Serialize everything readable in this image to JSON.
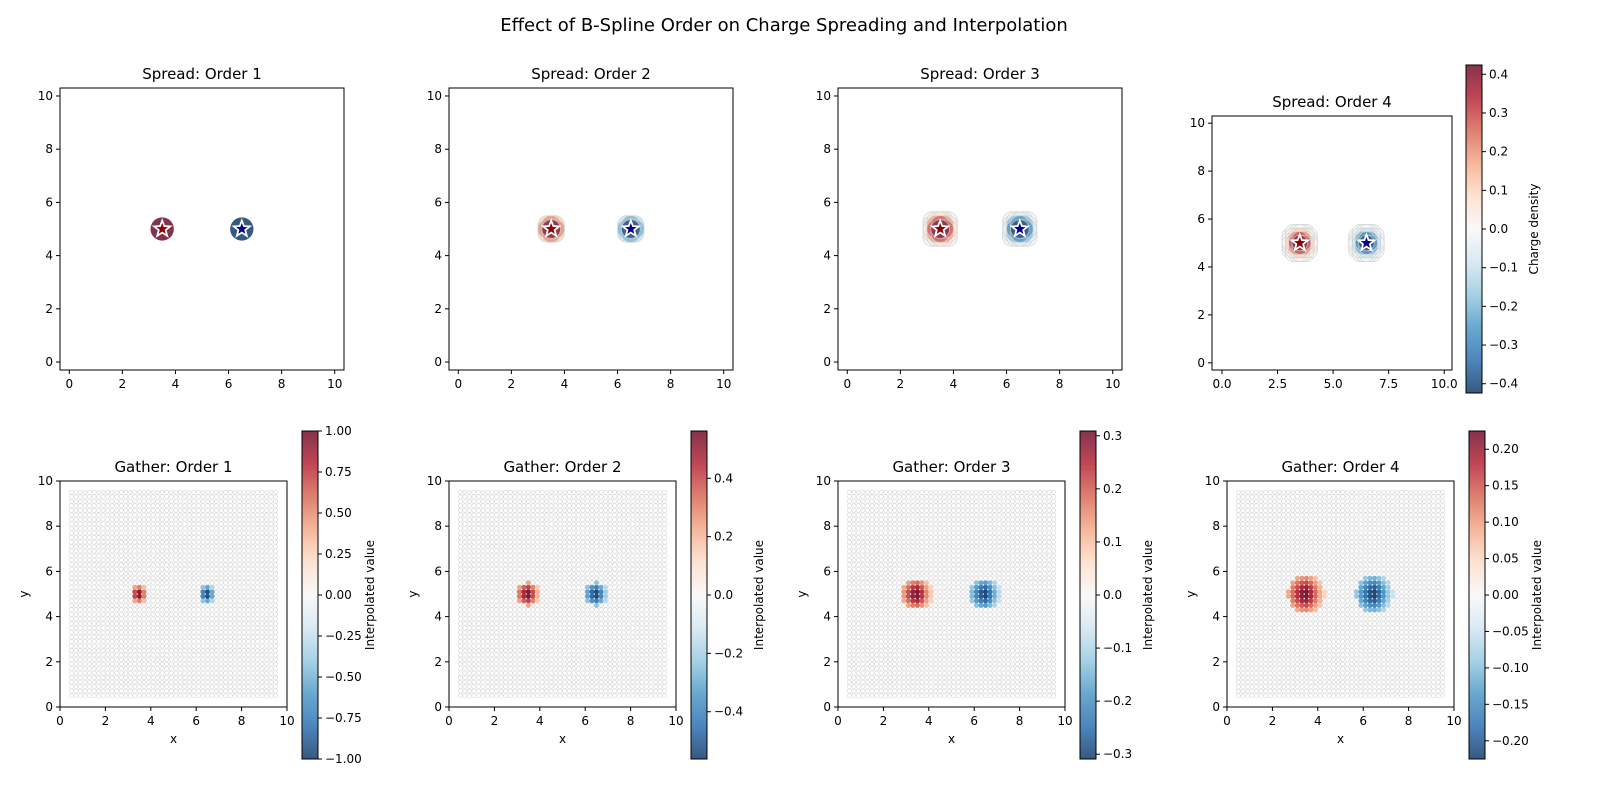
{
  "chart_data": {
    "title": "Effect of B-Spline Order on Charge Spreading and Interpolation",
    "type": "scatter",
    "colormap": "RdBu_r",
    "charges": [
      {
        "x": 3.5,
        "y": 5.0,
        "q": 1,
        "marker_color": "#8b0000"
      },
      {
        "x": 6.5,
        "y": 5.0,
        "q": -1,
        "marker_color": "#00008b"
      }
    ],
    "spread_panels": [
      {
        "title": "Spread: Order 1",
        "order": 1,
        "xlim": [
          -0.35,
          10.35
        ],
        "ylim": [
          -0.3,
          10.3
        ],
        "xticks": [
          "0",
          "2",
          "4",
          "6",
          "8",
          "10"
        ],
        "yticks": [
          "0",
          "2",
          "4",
          "6",
          "8",
          "10"
        ]
      },
      {
        "title": "Spread: Order 2",
        "order": 2,
        "xlim": [
          -0.35,
          10.35
        ],
        "ylim": [
          -0.3,
          10.3
        ],
        "xticks": [
          "0",
          "2",
          "4",
          "6",
          "8",
          "10"
        ],
        "yticks": [
          "0",
          "2",
          "4",
          "6",
          "8",
          "10"
        ]
      },
      {
        "title": "Spread: Order 3",
        "order": 3,
        "xlim": [
          -0.35,
          10.35
        ],
        "ylim": [
          -0.3,
          10.3
        ],
        "xticks": [
          "0",
          "2",
          "4",
          "6",
          "8",
          "10"
        ],
        "yticks": [
          "0",
          "2",
          "4",
          "6",
          "8",
          "10"
        ]
      },
      {
        "title": "Spread: Order 4",
        "order": 4,
        "xlim": [
          -0.45,
          10.35
        ],
        "ylim": [
          -0.3,
          10.3
        ],
        "xticks": [
          "0.0",
          "2.5",
          "5.0",
          "7.5",
          "10.0"
        ],
        "yticks": [
          "0",
          "2",
          "4",
          "6",
          "8",
          "10"
        ],
        "colorbar": {
          "label": "Charge density",
          "range": [
            -0.424,
            0.424
          ],
          "ticks": [
            "0.4",
            "0.3",
            "0.2",
            "0.1",
            "0.0",
            "−0.1",
            "−0.2",
            "−0.3",
            "−0.4"
          ]
        }
      }
    ],
    "gather_panels": [
      {
        "title": "Gather: Order 1",
        "order": 1,
        "xlabel": "x",
        "ylabel": "y",
        "xlim": [
          0,
          10
        ],
        "ylim": [
          0,
          10
        ],
        "xticks": [
          "0",
          "2",
          "4",
          "6",
          "8",
          "10"
        ],
        "yticks": [
          "0",
          "2",
          "4",
          "6",
          "8",
          "10"
        ],
        "colorbar": {
          "label": "Interpolated value",
          "range": [
            -1.0,
            1.0
          ],
          "ticks": [
            "1.00",
            "0.75",
            "0.50",
            "0.25",
            "0.00",
            "−0.25",
            "−0.50",
            "−0.75",
            "−1.00"
          ]
        }
      },
      {
        "title": "Gather: Order 2",
        "order": 2,
        "xlabel": "x",
        "ylabel": "y",
        "xlim": [
          0,
          10
        ],
        "ylim": [
          0,
          10
        ],
        "xticks": [
          "0",
          "2",
          "4",
          "6",
          "8",
          "10"
        ],
        "yticks": [
          "0",
          "2",
          "4",
          "6",
          "8",
          "10"
        ],
        "colorbar": {
          "label": "Interpolated value",
          "range": [
            -0.562,
            0.562
          ],
          "ticks": [
            "0.4",
            "0.2",
            "0.0",
            "−0.2",
            "−0.4"
          ]
        }
      },
      {
        "title": "Gather: Order 3",
        "order": 3,
        "xlabel": "x",
        "ylabel": "y",
        "xlim": [
          0,
          10
        ],
        "ylim": [
          0,
          10
        ],
        "xticks": [
          "0",
          "2",
          "4",
          "6",
          "8",
          "10"
        ],
        "yticks": [
          "0",
          "2",
          "4",
          "6",
          "8",
          "10"
        ],
        "colorbar": {
          "label": "Interpolated value",
          "range": [
            -0.309,
            0.309
          ],
          "ticks": [
            "0.3",
            "0.2",
            "0.1",
            "0.0",
            "−0.1",
            "−0.2",
            "−0.3"
          ]
        }
      },
      {
        "title": "Gather: Order 4",
        "order": 4,
        "xlabel": "x",
        "ylabel": "y",
        "xlim": [
          0,
          10
        ],
        "ylim": [
          0,
          10
        ],
        "xticks": [
          "0",
          "2",
          "4",
          "6",
          "8",
          "10"
        ],
        "yticks": [
          "0",
          "2",
          "4",
          "6",
          "8",
          "10"
        ],
        "colorbar": {
          "label": "Interpolated value",
          "range": [
            -0.225,
            0.225
          ],
          "ticks": [
            "0.20",
            "0.15",
            "0.10",
            "0.05",
            "0.00",
            "−0.05",
            "−0.10",
            "−0.15",
            "−0.20"
          ]
        }
      }
    ],
    "gather_grid": {
      "start": 0.5,
      "stop": 9.5,
      "step": 0.2
    }
  }
}
